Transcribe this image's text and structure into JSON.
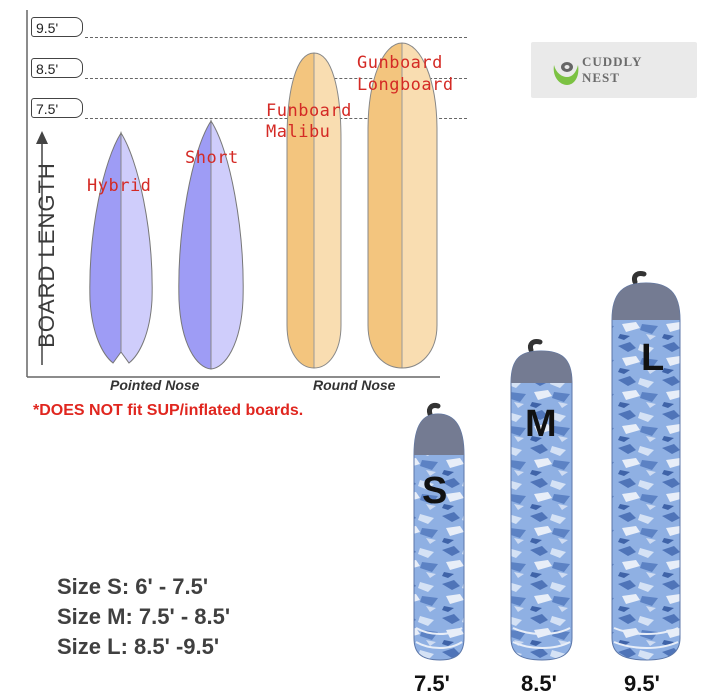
{
  "height_markers": [
    "9.5'",
    "8.5'",
    "7.5'"
  ],
  "axis_label": "BOARD LENGTH",
  "boards": {
    "hybrid": "Hybrid",
    "short": "Short",
    "funboard_line1": "Funboard",
    "funboard_line2": "Malibu",
    "gunboard_line1": "Gunboard",
    "gunboard_line2": "Longboard"
  },
  "nose_labels": {
    "pointed": "Pointed Nose",
    "round": "Round Nose"
  },
  "disclaimer": "*DOES NOT fit SUP/inflated boards.",
  "logo": {
    "line1": "CUDDLY",
    "line2": "NEST"
  },
  "size_lines": [
    {
      "name": "Size S",
      "range": ": 6' - 7.5'"
    },
    {
      "name": "Size M",
      "range": ": 7.5' - 8.5'"
    },
    {
      "name": "Size L",
      "range": ": 8.5' -9.5'"
    }
  ],
  "socks": [
    {
      "letter": "S",
      "length": "7.5'"
    },
    {
      "letter": "M",
      "length": "8.5'"
    },
    {
      "letter": "L",
      "length": "9.5'"
    }
  ],
  "colors": {
    "pointed_board_dark": "#9e9cf5",
    "pointed_board_light": "#cfcdfb",
    "round_board_dark": "#f3c57e",
    "round_board_light": "#f9ddb1",
    "label_red": "#d42a25",
    "sock_blue": "#6d93d2",
    "sock_cap": "#747b92"
  }
}
